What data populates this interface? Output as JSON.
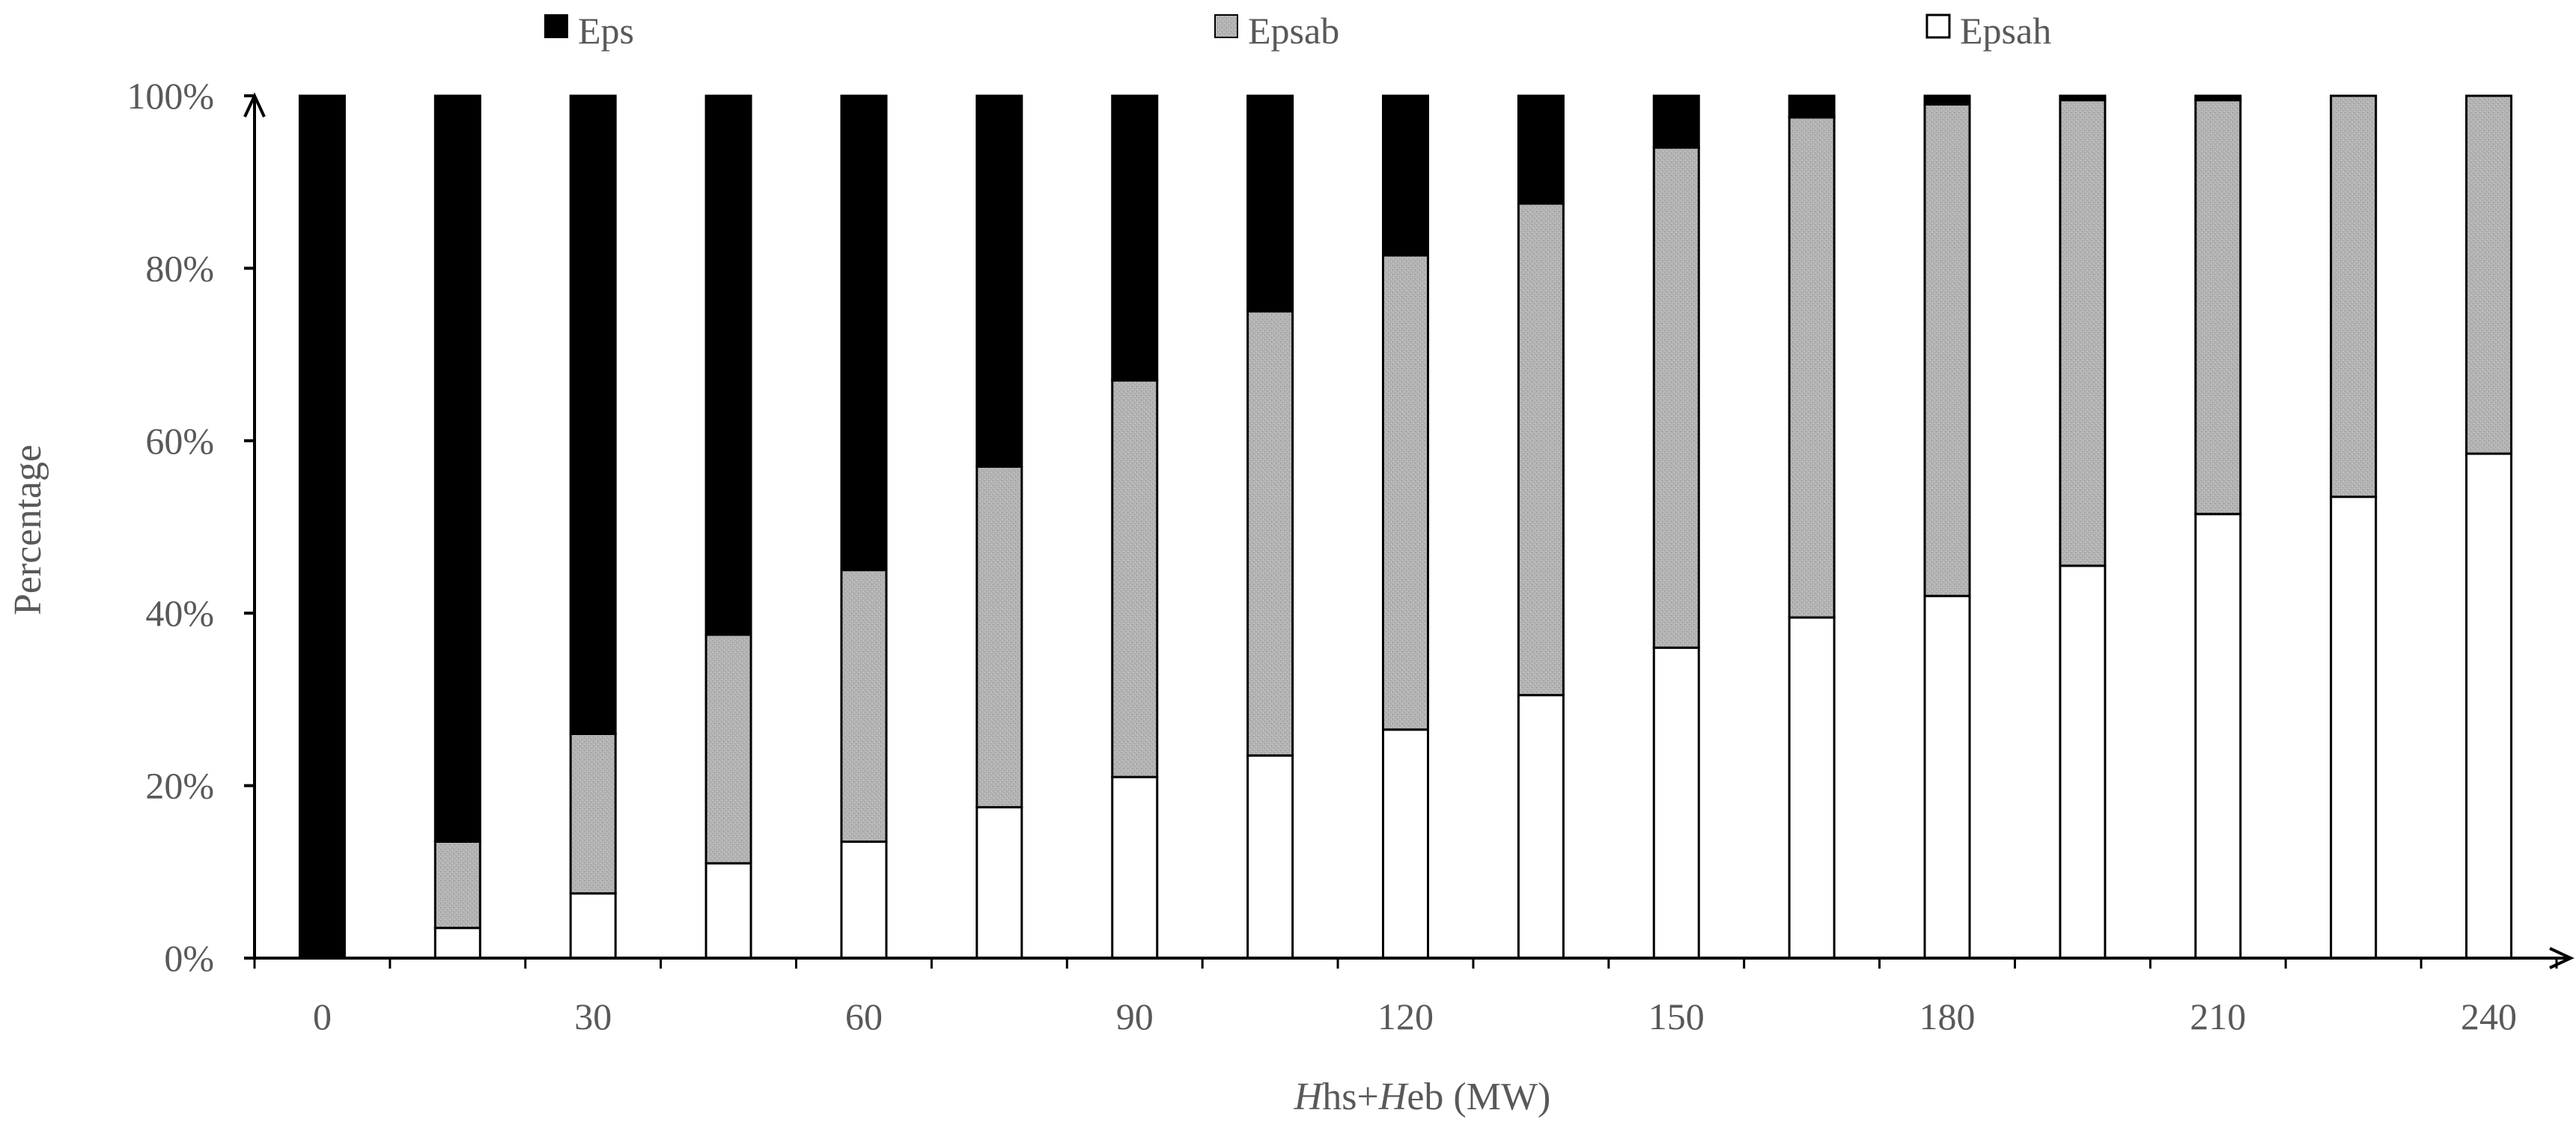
{
  "chart_data": {
    "type": "bar",
    "stacked": true,
    "percent": true,
    "categories": [
      "0",
      "",
      "30",
      "",
      "60",
      "",
      "90",
      "",
      "120",
      "",
      "150",
      "",
      "180",
      "",
      "210",
      "",
      "240"
    ],
    "x_values": [
      0,
      15,
      30,
      45,
      60,
      75,
      90,
      105,
      120,
      135,
      150,
      165,
      180,
      195,
      210,
      225,
      240
    ],
    "series": [
      {
        "name": "Epsah",
        "color": "#ffffff",
        "values": [
          0,
          3.5,
          7.5,
          11,
          13.5,
          17.5,
          21,
          23.5,
          26.5,
          30.5,
          36,
          39.5,
          42,
          45.5,
          51.5,
          53.5,
          58.5
        ]
      },
      {
        "name": "Epsab",
        "color": "#b3b3b3",
        "values": [
          0,
          10,
          18.5,
          26.5,
          31.5,
          39.5,
          46,
          51.5,
          55,
          57,
          58,
          58,
          57,
          54,
          48,
          46.5,
          41.5
        ]
      },
      {
        "name": "Eps",
        "color": "#000000",
        "values": [
          100,
          86.5,
          74,
          62.5,
          55,
          43,
          33,
          25,
          18.5,
          12.5,
          6,
          2.5,
          1,
          0.5,
          0.5,
          0,
          0
        ]
      }
    ],
    "xlabel": {
      "italic1": "H",
      "plain1": "hs+",
      "italic2": "H",
      "plain2": "eb (MW)"
    },
    "ylabel": "Percentage",
    "ylim": [
      0,
      100
    ],
    "yticks": [
      "0%",
      "20%",
      "40%",
      "60%",
      "80%",
      "100%"
    ],
    "legend_position": "top"
  }
}
